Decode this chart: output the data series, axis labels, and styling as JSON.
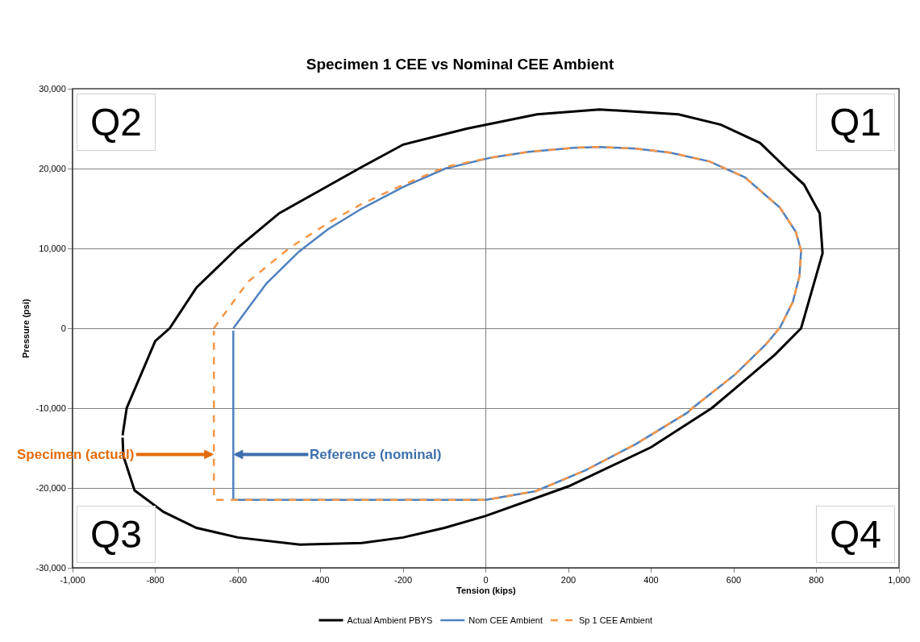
{
  "chart_data": {
    "type": "line",
    "title": "Specimen 1 CEE vs Nominal CEE Ambient",
    "xlabel": "Tension (kips)",
    "ylabel": "Pressure (psi)",
    "xlim": [
      -1000,
      1000
    ],
    "ylim": [
      -30000,
      30000
    ],
    "xticks": [
      {
        "value": -1000,
        "label": "-1,000"
      },
      -800,
      -600,
      -400,
      -200,
      0,
      200,
      400,
      600,
      800,
      {
        "value": 1000,
        "label": "1,000"
      }
    ],
    "yticks": [
      {
        "value": -30000,
        "label": "-30,000"
      },
      {
        "value": -20000,
        "label": "-20,000"
      },
      {
        "value": -10000,
        "label": "-10,000"
      },
      0,
      {
        "value": 10000,
        "label": "10,000"
      },
      {
        "value": 20000,
        "label": "20,000"
      },
      {
        "value": 30000,
        "label": "30,000"
      }
    ],
    "grid": "y",
    "legend": "bottom",
    "marker": "none",
    "ref_lines": [
      {
        "axis": "x",
        "value": 0,
        "color": "#808080"
      }
    ],
    "series": [
      {
        "name": "Actual Ambient PBYS",
        "color": "#000000",
        "line_style": "solid",
        "x": [
          -879,
          -869,
          -800,
          -765,
          -700,
          -600,
          -500,
          -400,
          -300,
          -200,
          -46,
          124,
          275,
          466,
          569,
          664,
          726,
          770,
          808,
          815,
          763,
          700,
          600,
          547,
          400,
          200,
          0,
          -100,
          -200,
          -300,
          -450,
          -600,
          -700,
          -780,
          -850,
          -877,
          -879
        ],
        "values": [
          -13400,
          -10000,
          -1600,
          0,
          5100,
          10100,
          14400,
          17300,
          20200,
          23000,
          25000,
          26800,
          27400,
          26800,
          25500,
          23200,
          20100,
          18000,
          14400,
          9400,
          0,
          -3300,
          -7700,
          -10000,
          -14900,
          -19800,
          -23500,
          -25000,
          -26200,
          -26900,
          -27100,
          -26200,
          -25000,
          -23000,
          -20300,
          -16000,
          -13700
        ]
      },
      {
        "name": "Nom CEE Ambient",
        "color": "#4f81bd",
        "line_style": "solid",
        "x": [
          -611,
          -531,
          -452,
          -382,
          -303,
          -200,
          -98,
          15,
          104,
          213,
          275,
          363,
          446,
          541,
          627,
          712,
          750,
          763,
          759,
          743,
          712,
          678,
          603,
          500,
          487,
          363,
          241,
          121,
          0,
          -611,
          -611
        ],
        "values": [
          0,
          5600,
          9600,
          12400,
          14900,
          17700,
          20000,
          21400,
          22100,
          22600,
          22700,
          22500,
          22000,
          20900,
          18900,
          15100,
          12100,
          9700,
          6500,
          3300,
          100,
          -2000,
          -5800,
          -10000,
          -10600,
          -14500,
          -17800,
          -20400,
          -21500,
          -21500,
          -300
        ]
      },
      {
        "name": "Sp 1 CEE Ambient",
        "color": "#f79646",
        "line_style": "dashed",
        "x": [
          -658,
          -576,
          -474,
          -378,
          -303,
          -207,
          -98,
          15,
          104,
          213,
          275,
          363,
          446,
          541,
          627,
          712,
          750,
          763,
          759,
          743,
          712,
          678,
          603,
          500,
          487,
          363,
          241,
          121,
          0,
          -658,
          -658
        ],
        "values": [
          0,
          5800,
          10100,
          13300,
          15500,
          17800,
          20200,
          21400,
          22100,
          22600,
          22700,
          22500,
          22000,
          20900,
          18900,
          15100,
          12100,
          9700,
          6500,
          3300,
          100,
          -2000,
          -5800,
          -10000,
          -10600,
          -14500,
          -17800,
          -20400,
          -21500,
          -21500,
          -300
        ]
      }
    ],
    "annotations": [
      "Q2",
      "Q1",
      "Q3",
      "Q4",
      {
        "text": "Specimen (actual)",
        "x": -658,
        "y": -15800
      },
      {
        "text": "Reference (nominal)",
        "x": -611,
        "y": -15800
      }
    ]
  }
}
